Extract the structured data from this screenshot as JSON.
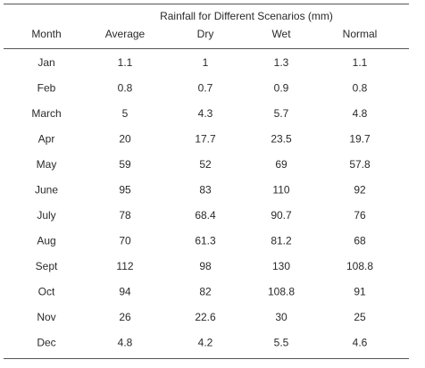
{
  "table": {
    "group_header": "Rainfall for Different Scenarios (mm)",
    "columns": [
      "Month",
      "Average",
      "Dry",
      "Wet",
      "Normal"
    ],
    "rows": [
      [
        "Jan",
        1.1,
        1,
        1.3,
        1.1
      ],
      [
        "Feb",
        0.8,
        0.7,
        0.9,
        0.8
      ],
      [
        "March",
        5,
        4.3,
        5.7,
        4.8
      ],
      [
        "Apr",
        20,
        17.7,
        23.5,
        19.7
      ],
      [
        "May",
        59,
        52,
        69,
        57.8
      ],
      [
        "June",
        95,
        83,
        110,
        92
      ],
      [
        "July",
        78,
        68.4,
        90.7,
        76
      ],
      [
        "Aug",
        70,
        61.3,
        81.2,
        68
      ],
      [
        "Sept",
        112,
        98,
        130,
        108.8
      ],
      [
        "Oct",
        94,
        82,
        108.8,
        91
      ],
      [
        "Nov",
        26,
        22.6,
        30,
        25
      ],
      [
        "Dec",
        4.8,
        4.2,
        5.5,
        4.6
      ]
    ]
  }
}
